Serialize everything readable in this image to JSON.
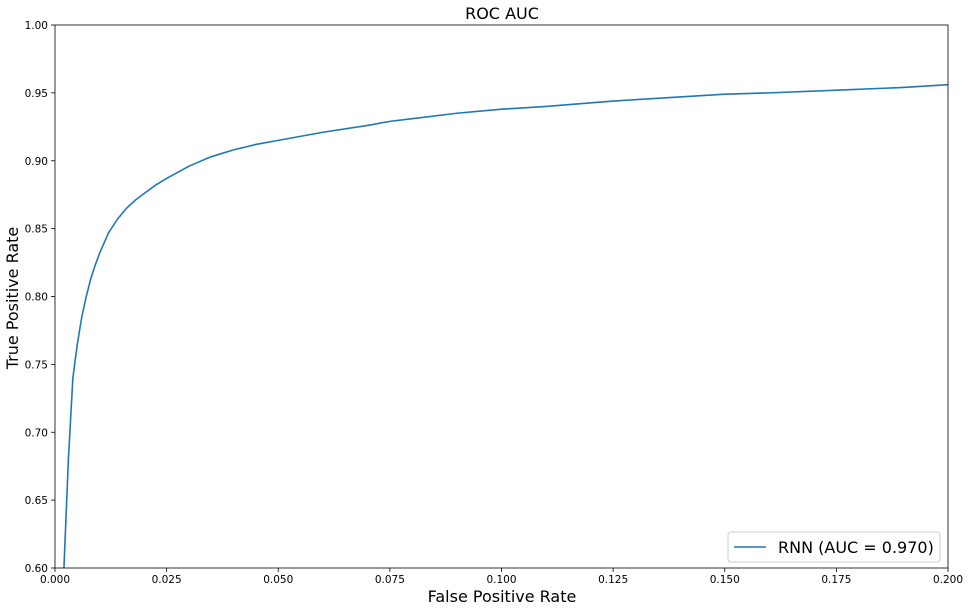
{
  "chart_data": {
    "type": "line",
    "title": "ROC AUC",
    "xlabel": "False Positive Rate",
    "ylabel": "True Positive Rate",
    "xlim": [
      0.0,
      0.2
    ],
    "ylim": [
      0.6,
      1.0
    ],
    "x_ticks": [
      "0.000",
      "0.025",
      "0.050",
      "0.075",
      "0.100",
      "0.125",
      "0.150",
      "0.175",
      "0.200"
    ],
    "y_ticks": [
      "0.60",
      "0.65",
      "0.70",
      "0.75",
      "0.80",
      "0.85",
      "0.90",
      "0.95",
      "1.00"
    ],
    "grid": false,
    "legend_position": "bottom-right",
    "series": [
      {
        "name": "RNN (AUC = 0.970)",
        "color": "#1f77b4",
        "x": [
          0.002,
          0.0025,
          0.003,
          0.0035,
          0.004,
          0.005,
          0.006,
          0.007,
          0.008,
          0.009,
          0.01,
          0.012,
          0.014,
          0.016,
          0.018,
          0.02,
          0.0225,
          0.025,
          0.03,
          0.035,
          0.04,
          0.045,
          0.05,
          0.06,
          0.07,
          0.075,
          0.08,
          0.09,
          0.1,
          0.11,
          0.125,
          0.14,
          0.15,
          0.16,
          0.175,
          0.19,
          0.2
        ],
        "y": [
          0.6,
          0.64,
          0.68,
          0.71,
          0.74,
          0.765,
          0.785,
          0.8,
          0.813,
          0.823,
          0.832,
          0.847,
          0.857,
          0.865,
          0.871,
          0.876,
          0.882,
          0.887,
          0.896,
          0.903,
          0.908,
          0.912,
          0.915,
          0.921,
          0.926,
          0.929,
          0.931,
          0.935,
          0.938,
          0.94,
          0.944,
          0.947,
          0.949,
          0.95,
          0.952,
          0.954,
          0.956
        ]
      }
    ]
  }
}
